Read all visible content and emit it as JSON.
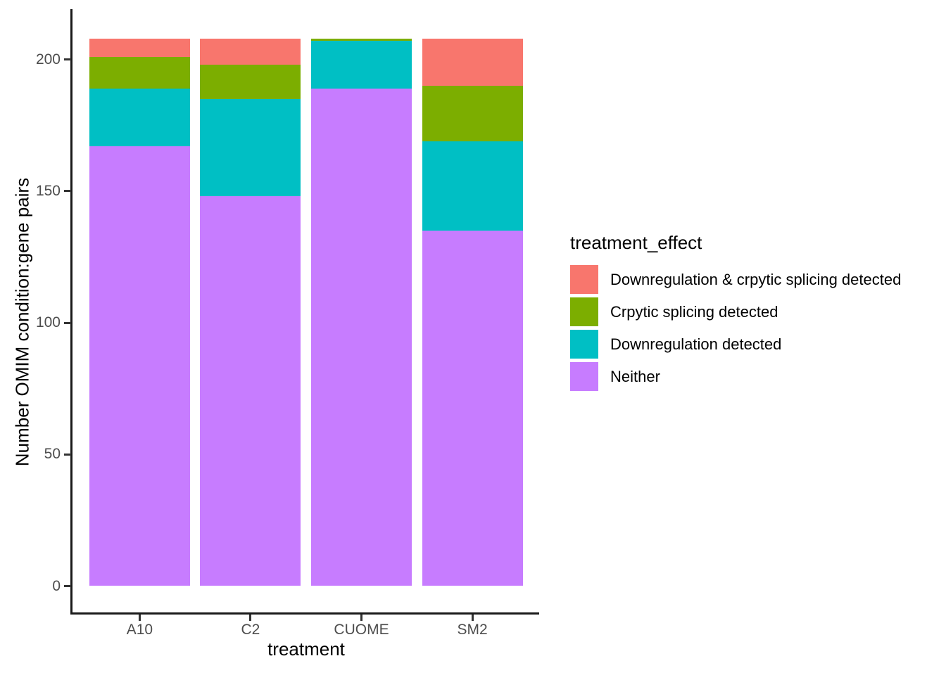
{
  "chart_data": {
    "type": "bar",
    "stacked": true,
    "title": "",
    "xlabel": "treatment",
    "ylabel": "Number OMIM condition:gene pairs",
    "categories": [
      "A10",
      "C2",
      "CUOME",
      "SM2"
    ],
    "series": [
      {
        "name": "Downregulation & crpytic splicing detected",
        "color": "#F8766D",
        "values": [
          7,
          10,
          0,
          18
        ]
      },
      {
        "name": "Crpytic splicing detected",
        "color": "#7CAE00",
        "values": [
          12,
          13,
          1,
          21
        ]
      },
      {
        "name": "Downregulation detected",
        "color": "#00BFC4",
        "values": [
          22,
          37,
          18,
          34
        ]
      },
      {
        "name": "Neither",
        "color": "#C77CFF",
        "values": [
          167,
          148,
          189,
          135
        ]
      }
    ],
    "y_ticks": [
      0,
      50,
      100,
      150,
      200
    ],
    "ylim": [
      0,
      218
    ],
    "legend_title": "treatment_effect",
    "legend_position": "right",
    "grid": false,
    "colors": {
      "axis_text": "#4d4d4d",
      "axis_line": "#1a1a1a",
      "background": "#ffffff"
    }
  }
}
